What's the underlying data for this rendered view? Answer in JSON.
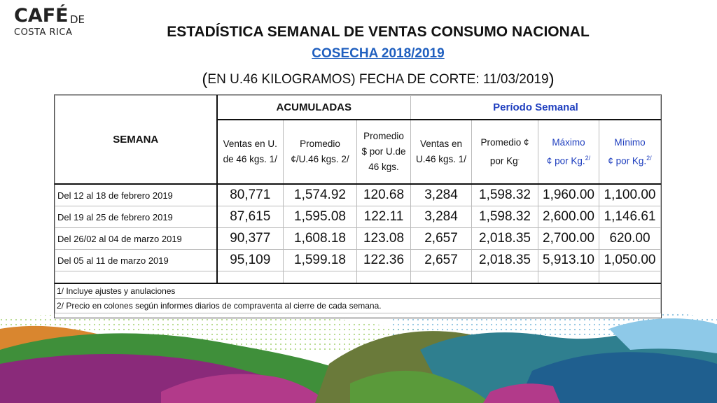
{
  "logo": {
    "line1": "CAFÉ",
    "line1b": "DE",
    "line2": "COSTA RICA"
  },
  "title": "ESTADÍSTICA SEMANAL DE VENTAS CONSUMO NACIONAL",
  "subtitle": "COSECHA 2018/2019",
  "cutoff": {
    "open": "(",
    "text": "EN U.46 KILOGRAMOS) FECHA DE CORTE: 11/03/2019",
    "close": ")"
  },
  "table": {
    "semana_header": "SEMANA",
    "group_acumuladas": "ACUMULADAS",
    "group_periodo": "Período Semanal",
    "columns": [
      {
        "line1": "Ventas en U.",
        "line2": "de 46 kgs. 1/"
      },
      {
        "line1": "Promedio",
        "line2": "¢/U.46 kgs. 2/"
      },
      {
        "line1": "Promedio",
        "line2": "$ por U.de",
        "line3": "46 kgs."
      },
      {
        "line1": "Ventas en",
        "line2": "U.46 kgs. 1/"
      },
      {
        "line1": "Promedio  ¢",
        "line2": "por Kg",
        "sup": "."
      },
      {
        "line1": "Máximo",
        "line2": "¢ por Kg.",
        "sup": "2/"
      },
      {
        "line1": "Mínimo",
        "line2": "¢ por Kg.",
        "sup": "2/"
      }
    ],
    "rows": [
      {
        "week": "Del 12  al 18 de febrero 2019",
        "values": [
          "80,771",
          "1,574.92",
          "120.68",
          "3,284",
          "1,598.32",
          "1,960.00",
          "1,100.00"
        ]
      },
      {
        "week": "Del 19  al 25 de febrero 2019",
        "values": [
          "87,615",
          "1,595.08",
          "122.11",
          "3,284",
          "1,598.32",
          "2,600.00",
          "1,146.61"
        ]
      },
      {
        "week": "Del 26/02  al 04 de marzo 2019",
        "values": [
          "90,377",
          "1,608.18",
          "123.08",
          "2,657",
          "2,018.35",
          "2,700.00",
          "620.00"
        ]
      },
      {
        "week": "Del 05 al 11 de marzo 2019",
        "values": [
          "95,109",
          "1,599.18",
          "122.36",
          "2,657",
          "2,018.35",
          "5,913.10",
          "1,050.00"
        ]
      }
    ],
    "notes": [
      "1/ Incluye  ajustes y anulaciones",
      "2/ Precio en colones según informes diarios de compraventa al cierre de cada semana."
    ]
  },
  "colors": {
    "accent_blue": "#1f5fbf",
    "header_blue": "#1f3fbf",
    "wave_purple": "#8a2a7a",
    "wave_green": "#3f8f3a",
    "wave_teal": "#2f7f8f",
    "wave_sky": "#8ec9e8",
    "wave_orange": "#d9862f"
  }
}
